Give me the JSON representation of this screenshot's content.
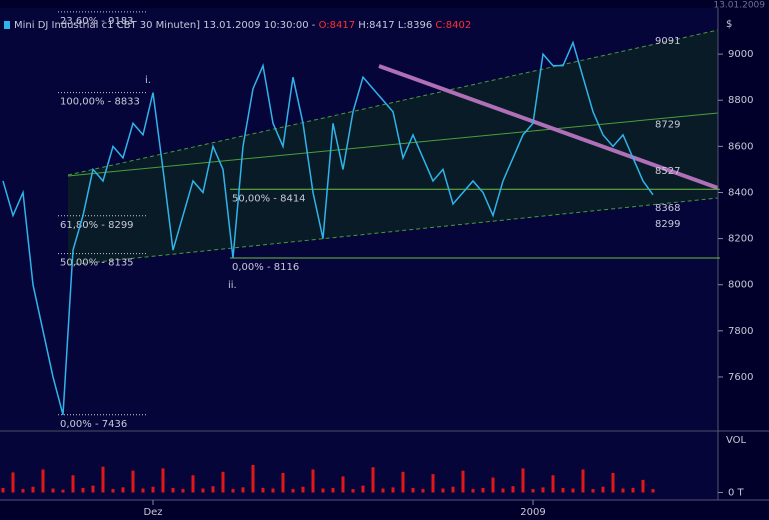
{
  "header": {
    "instrument": "Mini DJ Industrial c1 CBT  30 Minuten]",
    "datetime": "13.01.2009 10:30:00 -",
    "open": "O:8417",
    "high": "H:8417",
    "low": "L:8396",
    "close": "C:8402",
    "corner_date": "13.01.2009"
  },
  "chart_data": [
    {
      "type": "line",
      "color": "#2fb4ea",
      "unit": "$",
      "categories": [
        "",
        "",
        "",
        "",
        "",
        "",
        "",
        "",
        "",
        "",
        "",
        "",
        "",
        "",
        "",
        "Dez",
        "",
        "",
        "",
        "",
        "",
        "",
        "",
        "",
        "",
        "",
        "",
        "",
        "",
        "",
        "",
        "",
        "",
        "",
        "",
        "",
        "",
        "",
        "",
        "",
        "",
        "",
        "",
        "",
        "",
        "",
        "",
        "",
        "",
        "",
        "",
        "",
        "",
        "2009",
        "",
        "",
        "",
        "",
        "",
        "",
        "",
        "",
        "",
        "",
        "",
        ""
      ],
      "values": [
        8450,
        8300,
        8400,
        8000,
        7800,
        7600,
        7436,
        8150,
        8300,
        8500,
        8450,
        8600,
        8550,
        8700,
        8650,
        8833,
        8500,
        8150,
        8300,
        8450,
        8400,
        8600,
        8500,
        8116,
        8600,
        8850,
        8950,
        8700,
        8600,
        8900,
        8700,
        8400,
        8200,
        8700,
        8500,
        8750,
        8900,
        8850,
        8800,
        8750,
        8550,
        8650,
        8550,
        8450,
        8500,
        8350,
        8400,
        8450,
        8400,
        8300,
        8450,
        8550,
        8650,
        8700,
        9000,
        8950,
        8950,
        9050,
        8900,
        8750,
        8650,
        8600,
        8650,
        8550,
        8450,
        8390
      ],
      "ylim": [
        7370,
        9200
      ],
      "yticks": [
        7600,
        7800,
        8000,
        8200,
        8400,
        8600,
        8800,
        9000
      ],
      "levels": [
        {
          "label": "23,60% - 9183",
          "value": 9183,
          "color": "#e8a040"
        },
        {
          "label": "100,00% - 8833",
          "value": 8833,
          "color": "#e8a040"
        },
        {
          "label": "61,80% - 8299",
          "value": 8299,
          "color": "#e8a040"
        },
        {
          "label": "50,00% - 8135",
          "value": 8135,
          "color": "#e8a040"
        },
        {
          "label": "0,00% - 7436",
          "value": 7436,
          "color": "#e8a040"
        },
        {
          "label": "50,00% - 8414",
          "value": 8414,
          "color": "#b8d040"
        },
        {
          "label": "0,00% - 8116",
          "value": 8116,
          "color": "#b8d040"
        }
      ],
      "waves": [
        "i.",
        "ii."
      ],
      "right_labels": [
        {
          "value": 9091,
          "color": "#5aa040"
        },
        {
          "value": 8729,
          "color": "#5aa040"
        },
        {
          "value": 8527,
          "color": "#e040e0"
        },
        {
          "value": 8368,
          "color": "#5aa040"
        },
        {
          "value": 8299,
          "color": "#e8a040"
        }
      ]
    },
    {
      "type": "bar",
      "label": "VOL",
      "color": "#e01818",
      "values": [
        8,
        35,
        6,
        10,
        40,
        7,
        5,
        30,
        8,
        12,
        45,
        6,
        9,
        38,
        7,
        10,
        42,
        8,
        6,
        30,
        7,
        11,
        36,
        6,
        9,
        48,
        8,
        7,
        34,
        6,
        10,
        40,
        7,
        8,
        28,
        6,
        12,
        44,
        7,
        9,
        36,
        8,
        6,
        32,
        7,
        10,
        38,
        6,
        8,
        26,
        7,
        11,
        42,
        6,
        9,
        30,
        8,
        7,
        40,
        6,
        10,
        34,
        7,
        8,
        22,
        6
      ],
      "ylim": [
        -13,
        100
      ],
      "yticks": [
        {
          "value": 0,
          "label": "0 T"
        }
      ]
    }
  ]
}
